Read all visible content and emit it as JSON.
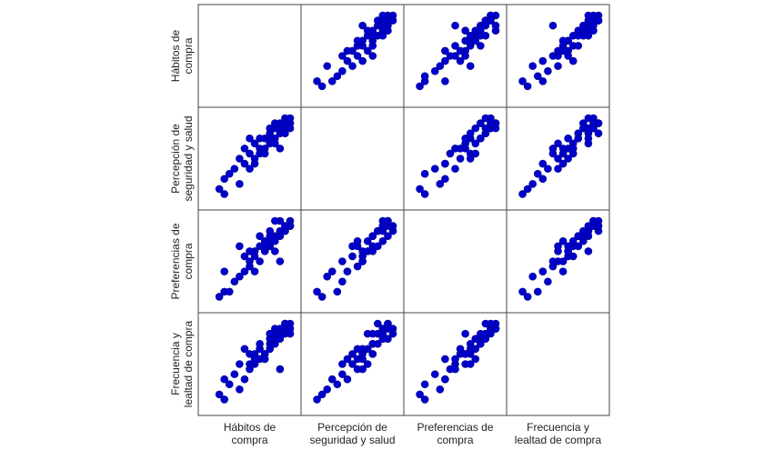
{
  "chart_data": {
    "type": "scatter-matrix",
    "color": "#0000cc",
    "labels": [
      [
        "Hábitos de",
        "compra"
      ],
      [
        "Percepción de",
        "seguridad y salud"
      ],
      [
        "Preferencias de",
        "compra"
      ],
      [
        "Frecuencia y",
        "lealtad de compra"
      ]
    ],
    "lim": [
      1,
      5
    ],
    "variables": [
      {
        "values": [
          1.5,
          1.75,
          2,
          2.5,
          2.25,
          2.75,
          3,
          3,
          3.25,
          3.5,
          3.25,
          3.5,
          3.75,
          3.75,
          4,
          4,
          4.25,
          4.25,
          4.5,
          4.5,
          4.75,
          4.75,
          5,
          5,
          4.5,
          4.75,
          4,
          3.5,
          4.25,
          3.75,
          2.75,
          3,
          4.5,
          2.5,
          5,
          4.75,
          4.25,
          1.75,
          3.25,
          4
        ]
      },
      {
        "values": [
          1.5,
          1.25,
          2.25,
          1.75,
          2.5,
          2.75,
          2.5,
          3.25,
          3,
          3.5,
          3.75,
          3.25,
          3.5,
          4,
          3.75,
          4.25,
          4,
          4.5,
          4.25,
          4.75,
          4.5,
          5,
          4.75,
          5,
          4.5,
          4.25,
          4.5,
          4,
          3.75,
          3.25,
          3.5,
          4,
          3.5,
          3,
          4.5,
          4.75,
          4.75,
          2,
          2.75,
          4
        ]
      },
      {
        "values": [
          1.25,
          1.5,
          1.5,
          2.25,
          2,
          2.5,
          3,
          2.75,
          3.25,
          3,
          3.5,
          3.75,
          3.5,
          3.75,
          4,
          3.75,
          4.25,
          4,
          4.5,
          4.25,
          4.75,
          4.5,
          5,
          4.75,
          5,
          4.5,
          4.5,
          4.25,
          3.5,
          4,
          3.25,
          3.5,
          3,
          3.75,
          4.75,
          4.75,
          5,
          2.5,
          2.5,
          4.25
        ]
      },
      {
        "values": [
          1.5,
          1.25,
          2,
          1.75,
          2.5,
          2.25,
          3,
          2.75,
          3.5,
          3.25,
          3,
          3.75,
          3.5,
          3.5,
          3.75,
          4,
          4,
          4.25,
          4.5,
          4.25,
          4.75,
          4.5,
          5,
          4.75,
          4.75,
          5,
          4.25,
          4,
          4.5,
          3.25,
          3.75,
          3.5,
          2.75,
          3,
          4.5,
          5,
          4.75,
          2.25,
          3.25,
          4.5
        ]
      }
    ]
  }
}
